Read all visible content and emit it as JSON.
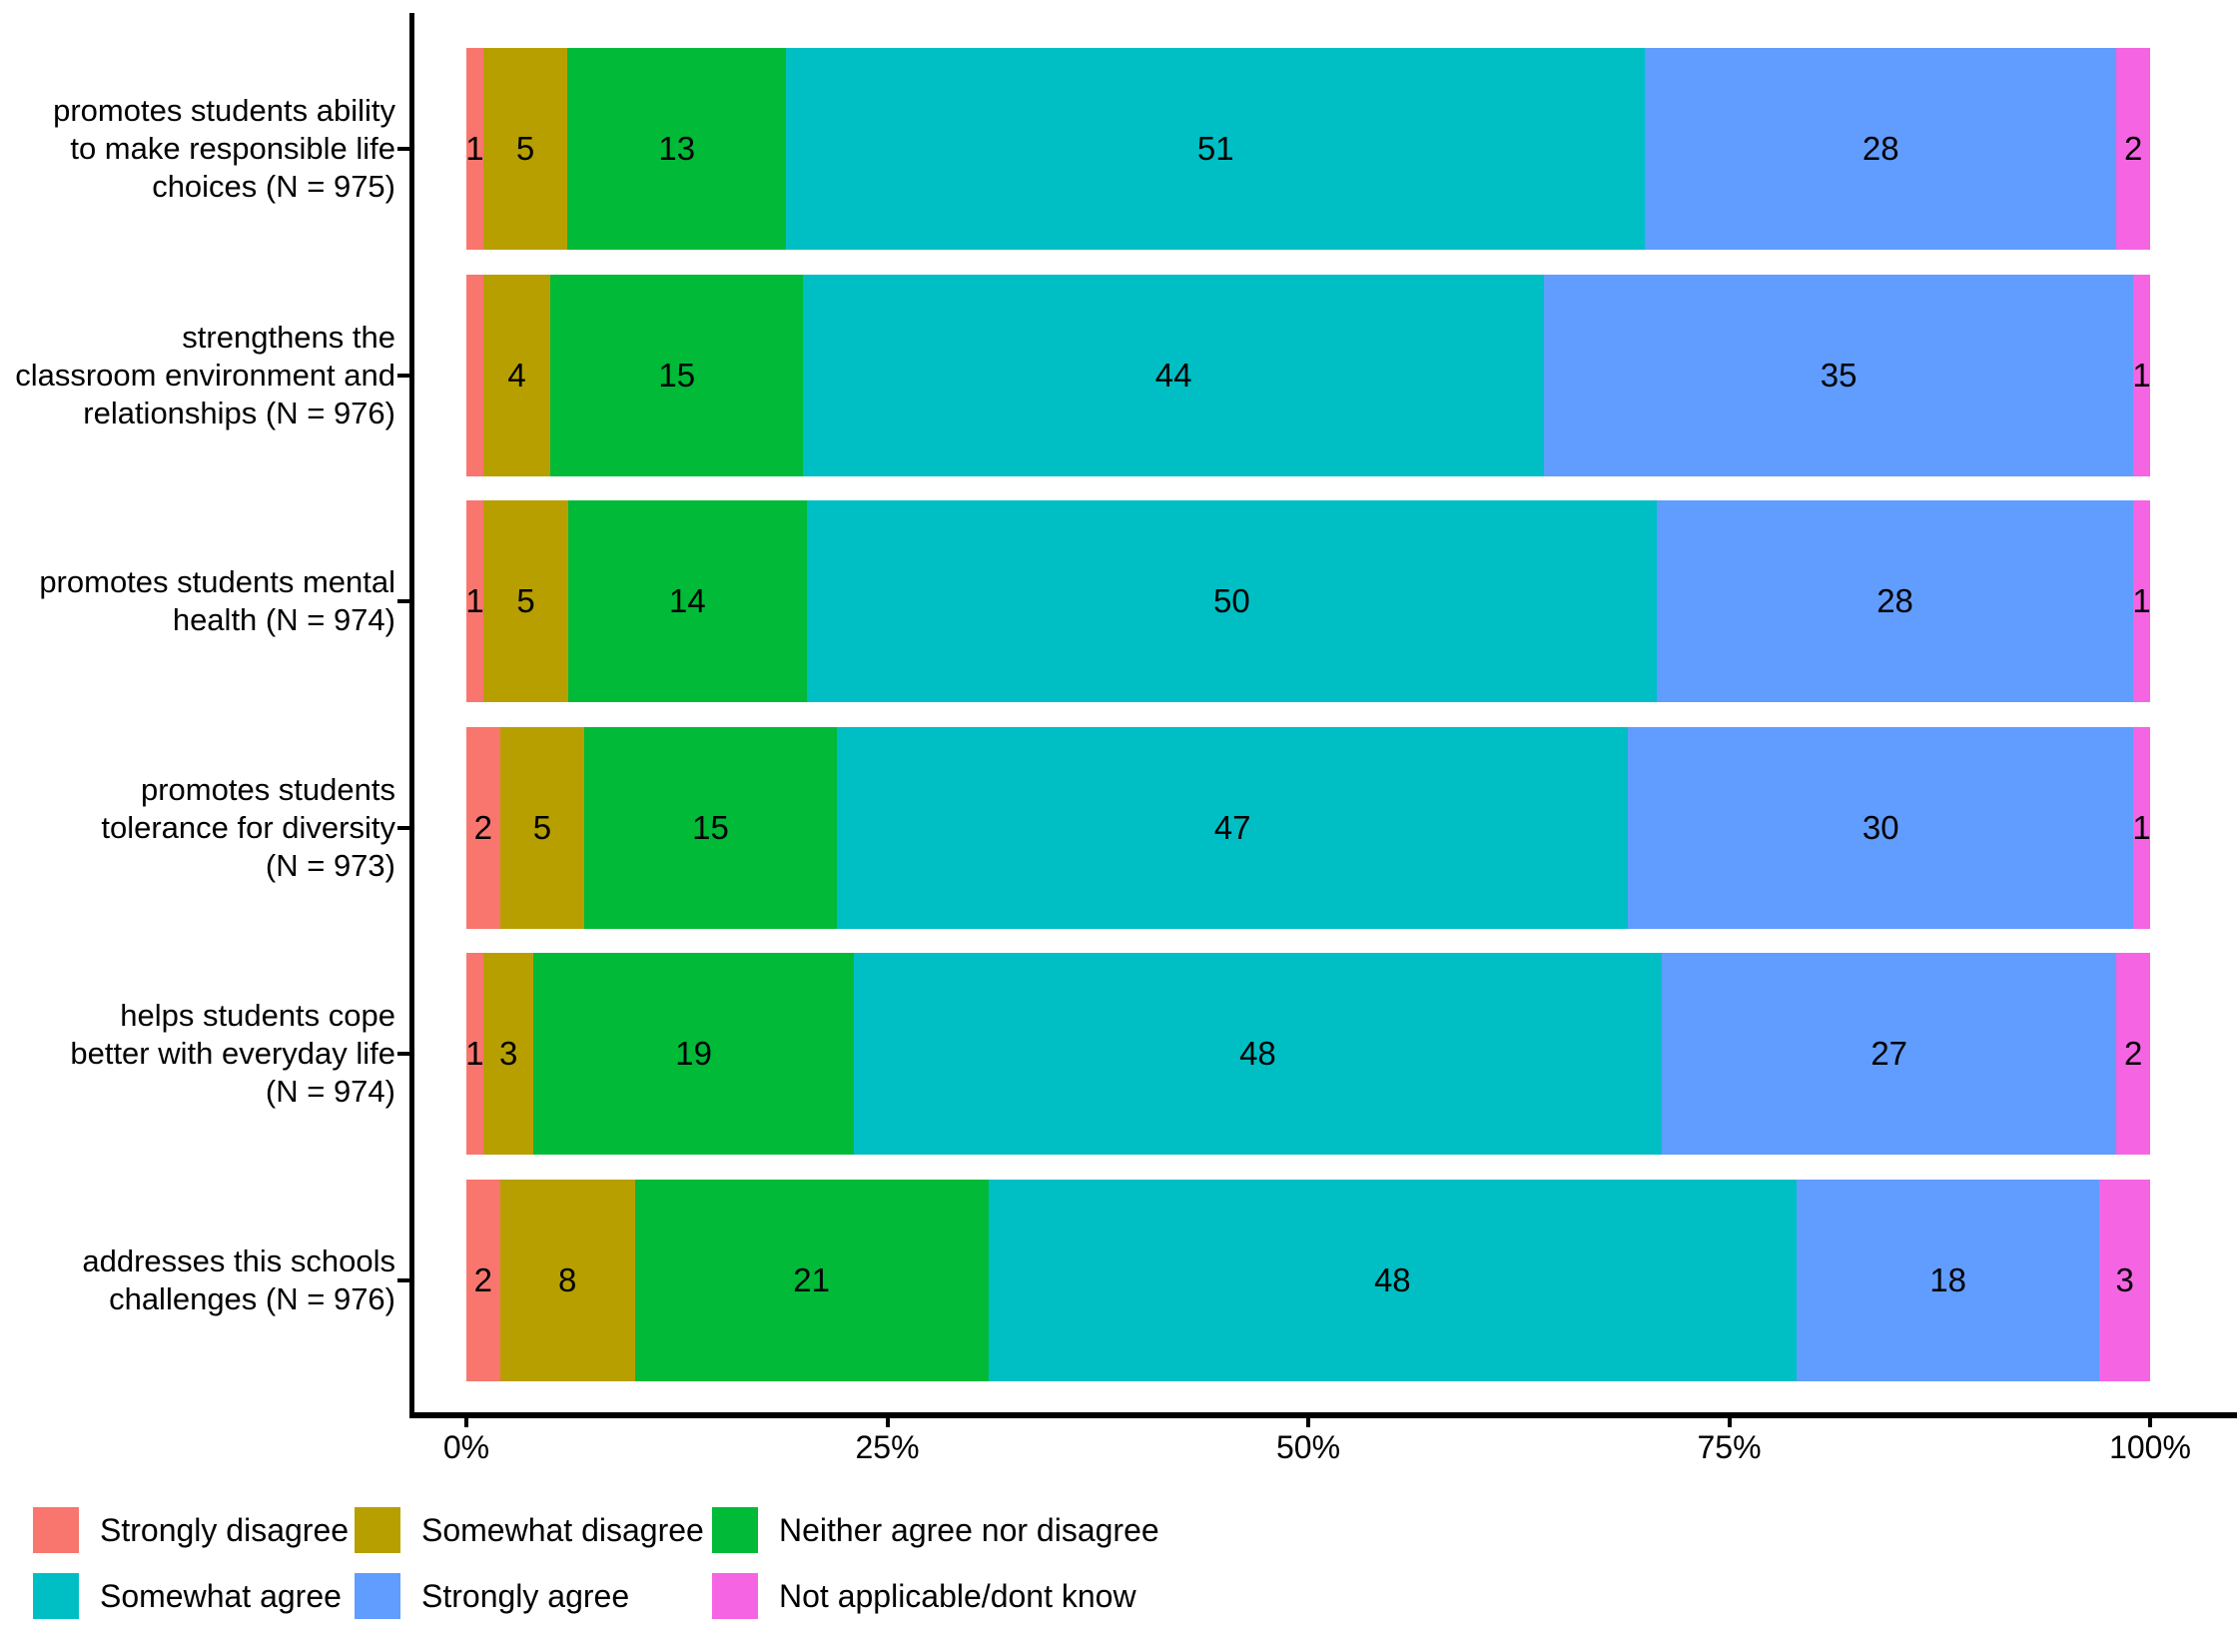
{
  "figure": {
    "background": "#FFFFFF",
    "axis_color": "#000000",
    "text_color": "#000000"
  },
  "chart_data": {
    "type": "bar",
    "stacked": true,
    "orientation": "horizontal",
    "unit": "percent",
    "title": "",
    "xlabel": "",
    "ylabel": "",
    "xlim": [
      0,
      100
    ],
    "grid": false,
    "legend_position": "bottom",
    "x_tick_values": [
      0,
      25,
      50,
      75,
      100
    ],
    "x_tick_labels": [
      "0%",
      "25%",
      "50%",
      "75%",
      "100%"
    ],
    "categories": [
      "promotes students ability to make responsible life choices (N = 975)",
      "strengthens the classroom environment and relationships (N = 976)",
      "promotes students mental health (N = 974)",
      "promotes students tolerance for diversity (N = 973)",
      "helps students cope better with everyday life (N = 974)",
      "addresses this schools challenges (N = 976)"
    ],
    "category_label_lines": [
      [
        "promotes students ability",
        "to make responsible life",
        "choices (N = 975)"
      ],
      [
        "strengthens the",
        "classroom environment and",
        "relationships (N = 976)"
      ],
      [
        "promotes students mental",
        "health (N = 974)"
      ],
      [
        "promotes students",
        "tolerance for diversity",
        "(N = 973)"
      ],
      [
        "helps students cope",
        "better with everyday life",
        "(N = 974)"
      ],
      [
        "addresses this schools",
        "challenges (N = 976)"
      ]
    ],
    "series": [
      {
        "name": "Strongly disagree",
        "color": "#F8766D",
        "values": [
          1,
          1,
          1,
          2,
          1,
          2
        ],
        "data_labels": [
          "1",
          "",
          "1",
          "2",
          "1",
          "2"
        ]
      },
      {
        "name": "Somewhat disagree",
        "color": "#B79F00",
        "values": [
          5,
          4,
          5,
          5,
          3,
          8
        ]
      },
      {
        "name": "Neither agree nor disagree",
        "color": "#00BA38",
        "values": [
          13,
          15,
          14,
          15,
          19,
          21
        ]
      },
      {
        "name": "Somewhat agree",
        "color": "#00BFC4",
        "values": [
          51,
          44,
          50,
          47,
          48,
          48
        ]
      },
      {
        "name": "Strongly agree",
        "color": "#619CFF",
        "values": [
          28,
          35,
          28,
          30,
          27,
          18
        ]
      },
      {
        "name": "Not applicable/dont know",
        "color": "#F564E3",
        "values": [
          2,
          1,
          1,
          1,
          2,
          3
        ]
      }
    ]
  }
}
